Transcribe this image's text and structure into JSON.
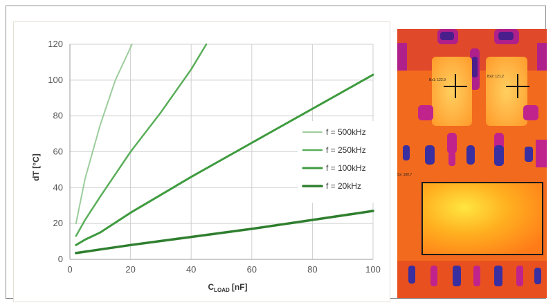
{
  "chart_data": {
    "type": "line",
    "xlabel_main": "C",
    "xlabel_sub": "LOAD",
    "xlabel_unit": "[nF]",
    "ylabel": "dT [°C]",
    "xlim": [
      0,
      100
    ],
    "ylim": [
      0,
      120
    ],
    "xticks": [
      0,
      20,
      40,
      60,
      80,
      100
    ],
    "yticks": [
      0,
      20,
      40,
      60,
      80,
      100,
      120
    ],
    "grid": true,
    "legend_position": "right",
    "series": [
      {
        "name": "f = 500kHz",
        "color": "#9ccc9c",
        "width": 2,
        "x": [
          2,
          5,
          10,
          15,
          20.5
        ],
        "y": [
          20,
          45,
          75,
          100,
          120
        ]
      },
      {
        "name": "f = 250kHz",
        "color": "#5aae5a",
        "width": 2.5,
        "x": [
          2,
          5,
          10,
          20,
          30,
          40,
          45
        ],
        "y": [
          13,
          22,
          35,
          60,
          82,
          106,
          120
        ]
      },
      {
        "name": "f = 100kHz",
        "color": "#3e9b3e",
        "width": 3,
        "x": [
          2,
          5,
          10,
          20,
          40,
          60,
          80,
          100
        ],
        "y": [
          8,
          11,
          15,
          26,
          46,
          65,
          84,
          103
        ]
      },
      {
        "name": "f = 20kHz",
        "color": "#2f7f2f",
        "width": 3.5,
        "x": [
          2,
          10,
          20,
          40,
          60,
          80,
          100
        ],
        "y": [
          3.5,
          5.5,
          8,
          12.5,
          17,
          22,
          27
        ]
      }
    ]
  },
  "thermal": {
    "labels": [
      "Bx1: 122.9",
      "Bx2: 121.2",
      "Sx: 100.7"
    ]
  }
}
